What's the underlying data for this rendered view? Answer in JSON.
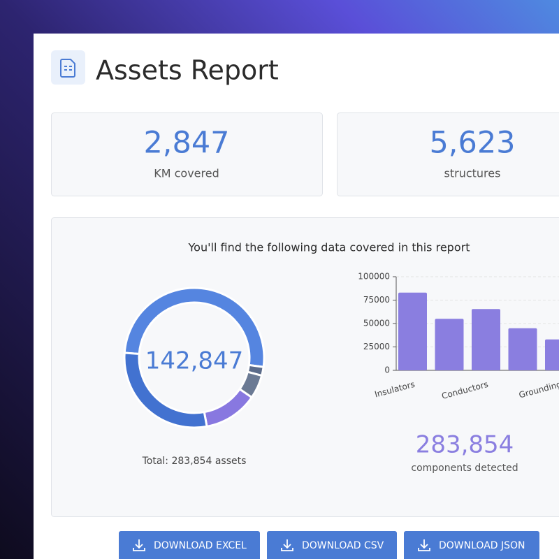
{
  "header": {
    "title": "Assets Report"
  },
  "stats": [
    {
      "value": "2,847",
      "label": "KM covered"
    },
    {
      "value": "5,623",
      "label": "structures"
    }
  ],
  "report": {
    "heading": "You'll find the following data covered in this report",
    "donut_center": "142,847",
    "donut_total": "Total: 283,854 assets",
    "summary": {
      "value": "283,854",
      "label": "components detected"
    }
  },
  "chart_data": [
    {
      "type": "pie",
      "hole": true,
      "values": [
        51,
        2,
        5.5,
        12.5,
        29
      ],
      "colors": [
        "#5585e0",
        "#5b6b8a",
        "#6b7a94",
        "#8878e0",
        "#4272d0"
      ]
    },
    {
      "type": "bar",
      "categories": [
        "Insulators",
        null,
        "Conductors",
        null,
        "Grounding"
      ],
      "values": [
        83000,
        55000,
        65500,
        45000,
        33000
      ],
      "color": "#8a7ee0",
      "ylim": [
        0,
        100000
      ],
      "yticks": [
        0,
        25000,
        50000,
        75000,
        100000
      ],
      "grid": true
    }
  ],
  "buttons": [
    "DOWNLOAD EXCEL",
    "DOWNLOAD CSV",
    "DOWNLOAD JSON"
  ]
}
